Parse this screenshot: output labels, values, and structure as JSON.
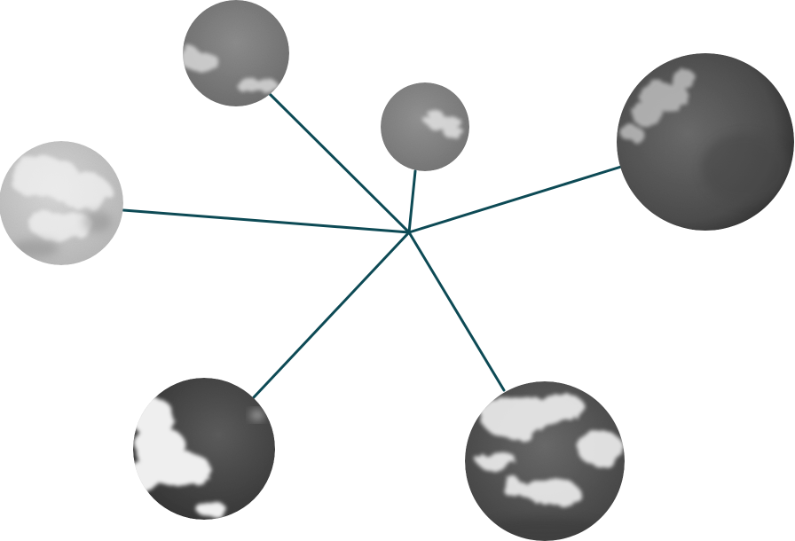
{
  "diagram": {
    "type": "hub-and-spoke",
    "node_count": 6,
    "colors": {
      "connector": "#0d4a55",
      "background": "#ffffff"
    },
    "nodes": [
      {
        "id": "top-left",
        "image": "overcast-sky-with-small-clouds",
        "tone": "gray"
      },
      {
        "id": "top-center",
        "image": "overcast-sky-with-wispy-cloud",
        "tone": "gray"
      },
      {
        "id": "right",
        "image": "dark-sky-with-bright-cloud-edge",
        "tone": "dark-gray"
      },
      {
        "id": "left",
        "image": "bright-cloudy-sky",
        "tone": "light-gray"
      },
      {
        "id": "bottom-left",
        "image": "dark-sky-with-cumulus-clouds",
        "tone": "dark-gray"
      },
      {
        "id": "bottom-right",
        "image": "scattered-cumulus-clouds",
        "tone": "mixed-gray"
      }
    ]
  }
}
